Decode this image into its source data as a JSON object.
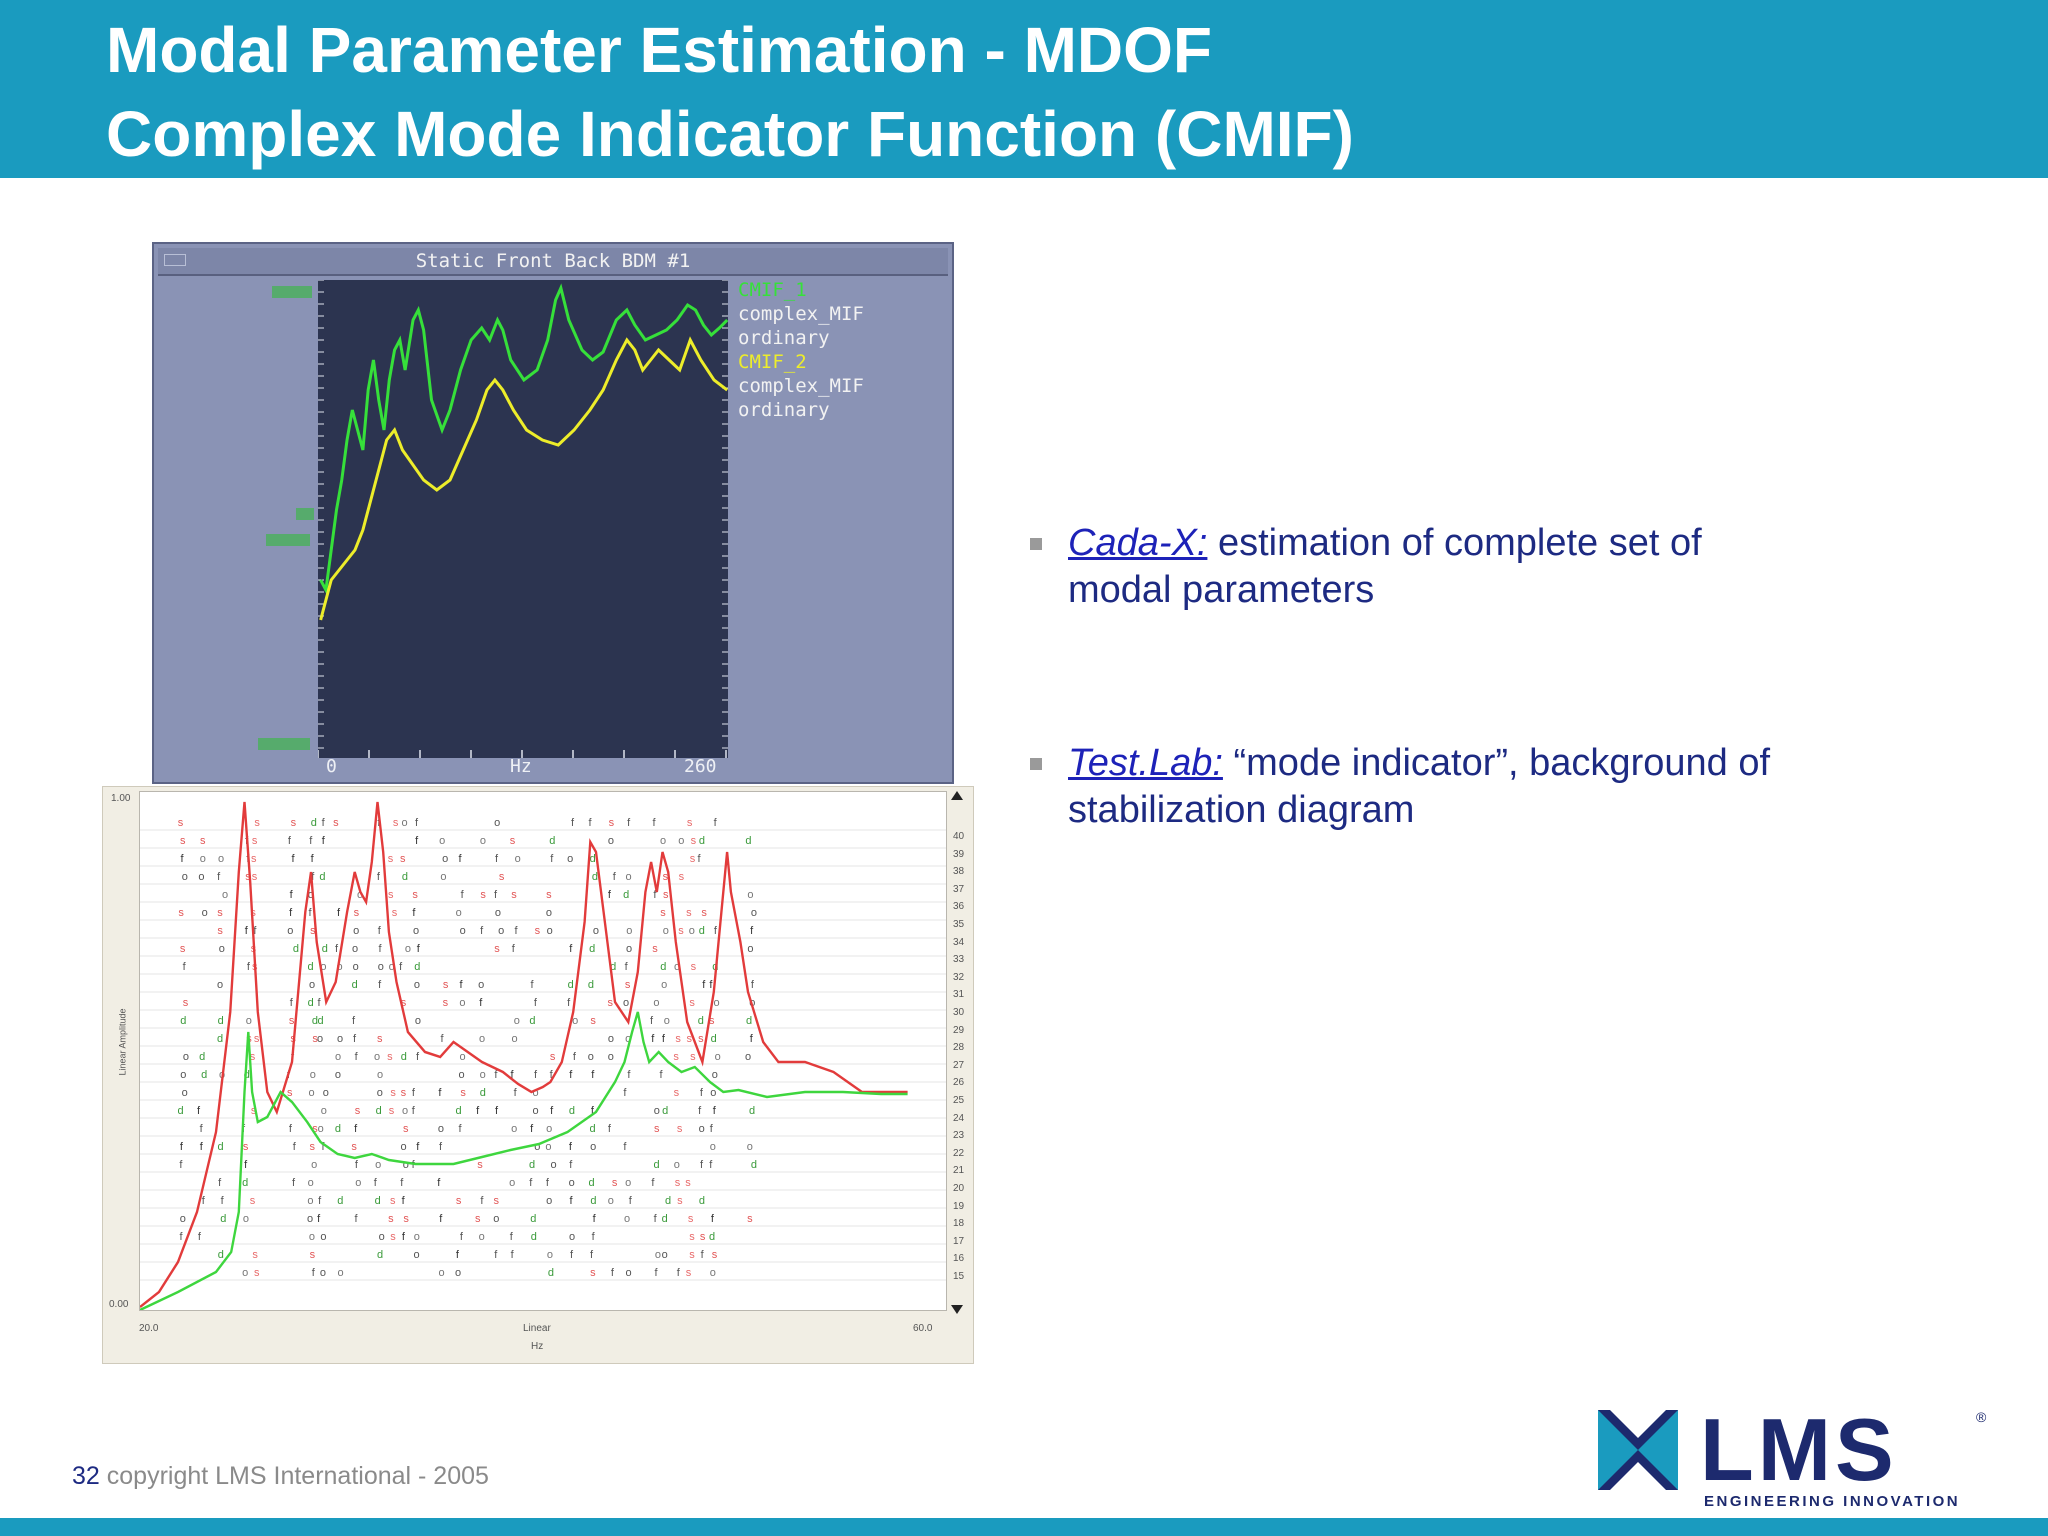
{
  "header": {
    "title_line1": "Modal Parameter Estimation - MDOF",
    "title_line2": "Complex Mode Indicator Function (CMIF)"
  },
  "cmif_window": {
    "title": "Static Front Back BDM #1",
    "x_axis": {
      "start": "0",
      "unit": "Hz",
      "end": "260"
    },
    "legend": [
      {
        "label": "CMIF_1",
        "color": "#36e03a"
      },
      {
        "label": "complex_MIF",
        "color": "#f2f2f2"
      },
      {
        "label": "ordinary",
        "color": "#f2f2f2"
      },
      {
        "label": "CMIF_2",
        "color": "#eded2a"
      },
      {
        "label": "complex_MIF",
        "color": "#f2f2f2"
      },
      {
        "label": "ordinary",
        "color": "#f2f2f2"
      }
    ]
  },
  "stabilization_diagram": {
    "y_top": "1.00",
    "y_bottom": "0.00",
    "x_start": "20.0",
    "x_end": "60.0",
    "x_label_top": "Linear",
    "x_label_bottom": "Hz",
    "y_label": "Linear Amplitude",
    "right_ticks": [
      "40",
      "39",
      "38",
      "37",
      "36",
      "35",
      "34",
      "33",
      "32",
      "31",
      "30",
      "29",
      "28",
      "27",
      "26",
      "25",
      "24",
      "23",
      "22",
      "21",
      "20",
      "19",
      "18",
      "17",
      "16",
      "15"
    ]
  },
  "bullets": [
    {
      "link": "Cada-X:",
      "line1": " estimation of complete set of",
      "line2": "modal parameters"
    },
    {
      "link": "Test.Lab:",
      "line1": " “mode indicator”, background of",
      "line2": "stabilization diagram"
    }
  ],
  "footer": {
    "page_number": "32",
    "copyright": " copyright LMS International - 2005"
  },
  "logo": {
    "text": "LMS",
    "tagline": "ENGINEERING INNOVATION",
    "registered": "®",
    "color": "#1d2a6e"
  },
  "colors": {
    "header_bg": "#1a9bbf",
    "text_blue": "#1d2a82",
    "cmif1": "#36e03a",
    "cmif2": "#eded2a",
    "stab_red": "#e23b3b",
    "stab_green": "#3ed63e"
  }
}
